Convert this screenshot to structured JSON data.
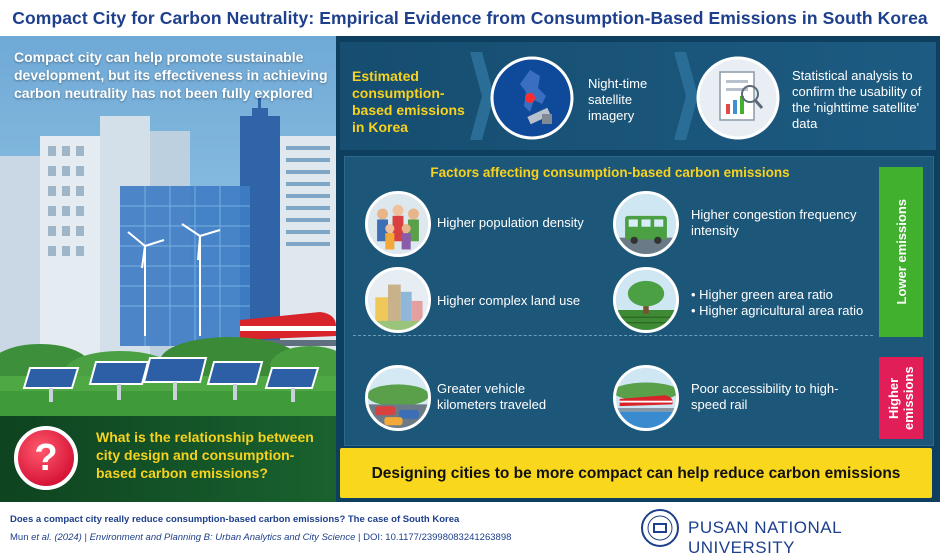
{
  "title": "Compact City for Carbon Neutrality: Empirical Evidence from Consumption-Based Emissions in South Korea",
  "left": {
    "intro": "Compact city can help promote sustainable development, but its effectiveness in achieving carbon neutrality has not been fully explored",
    "question_mark": "?",
    "question": "What is the relationship between city design and consumption-based carbon emissions?"
  },
  "process": {
    "step1": "Estimated consumption-based emissions in Korea",
    "step2": "Night-time satellite imagery",
    "step3": "Statistical analysis to confirm the usability of the 'nighttime satellite' data"
  },
  "factors": {
    "title": "Factors affecting consumption-based carbon emissions",
    "population_density": "Higher population density",
    "congestion": "Higher congestion frequency intensity",
    "land_use": "Higher complex land use",
    "green_area": "• Higher green area ratio",
    "agri_area": "• Higher agricultural area ratio",
    "vkt": "Greater vehicle kilometers traveled",
    "rail": "Poor accessibility to high-speed rail",
    "lower_label": "Lower emissions",
    "higher_label": "Higher emissions"
  },
  "conclusion": "Designing cities to be more compact can help reduce carbon emissions",
  "footer": {
    "citation_title": "Does a compact city really reduce consumption-based carbon emissions? The case of South Korea",
    "authors": "Mun ",
    "et_al_year": "et al. (2024)",
    "separator": " | ",
    "journal": "Environment and Planning B: Urban Analytics and City Science",
    "doi": "DOI: 10.1177/23998083241263898",
    "university": "PUSAN NATIONAL UNIVERSITY"
  },
  "colors": {
    "title_blue": "#1d3f8c",
    "yellow": "#f7d21e",
    "green_badge": "#41b02f",
    "pink_badge": "#e11e57",
    "panel_navy": "#0f3f5f"
  }
}
